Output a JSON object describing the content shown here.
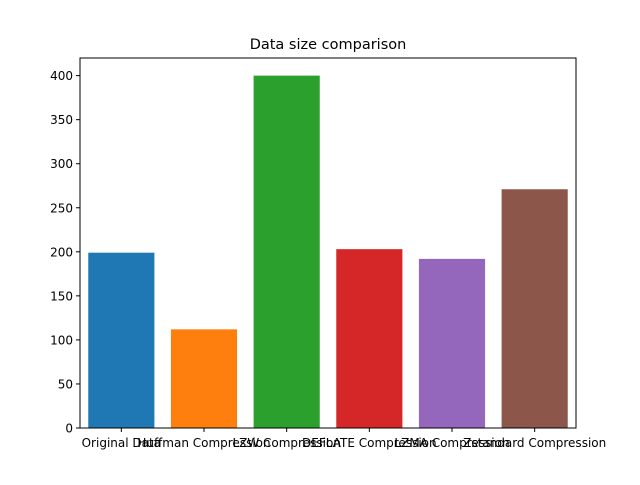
{
  "chart_data": {
    "type": "bar",
    "title": "Data size comparison",
    "xlabel": "",
    "ylabel": "",
    "categories": [
      "Original Data",
      "Huffman Compression",
      "LZW Compression",
      "DEFLATE Compression",
      "LZMA Compression",
      "Zstandard Compression"
    ],
    "values": [
      199,
      112,
      400,
      203,
      192,
      271
    ],
    "colors": [
      "#1f77b4",
      "#ff7f0e",
      "#2ca02c",
      "#d62728",
      "#9467bd",
      "#8c564b"
    ],
    "ylim": [
      0,
      420
    ],
    "yticks": [
      0,
      50,
      100,
      150,
      200,
      250,
      300,
      350,
      400
    ],
    "grid": false,
    "legend": "none"
  }
}
